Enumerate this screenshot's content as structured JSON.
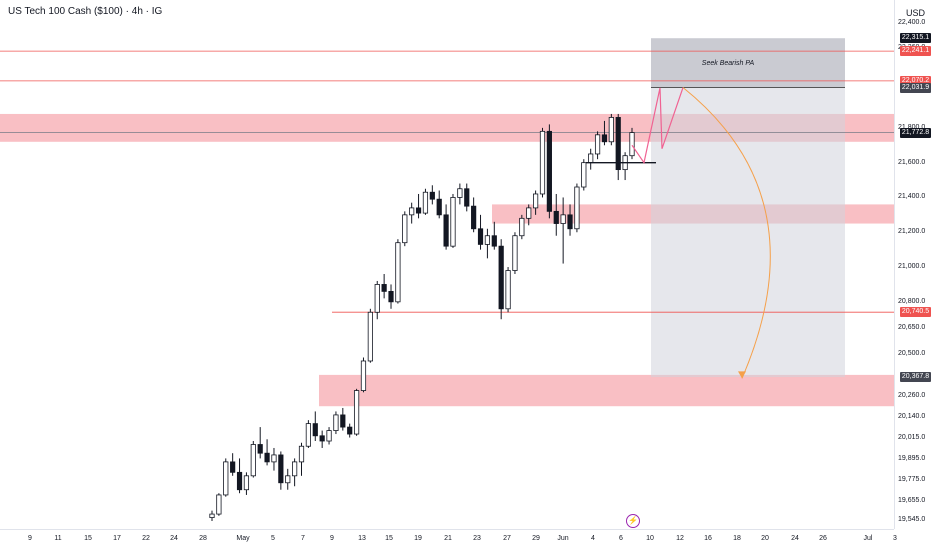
{
  "header": {
    "title": "US Tech 100 Cash ($100) · 4h · IG",
    "currency": "USD"
  },
  "annotations": {
    "seek_label": "Seek Bearish PA"
  },
  "price_axis": {
    "labels": [
      "22,400.0",
      "22,260.0",
      "21,800.0",
      "21,600.0",
      "21,400.0",
      "21,200.0",
      "21,000.0",
      "20,800.0",
      "20,650.0",
      "20,500.0",
      "20,260.0",
      "20,140.0",
      "20,015.0",
      "19,895.0",
      "19,775.0",
      "19,655.0",
      "19,545.0"
    ],
    "badges": [
      {
        "text": "22,315.1",
        "color": "#131722"
      },
      {
        "text": "22,241.1",
        "color": "#ef5350"
      },
      {
        "text": "22,070.2",
        "color": "#ef5350"
      },
      {
        "text": "22,031.9",
        "color": "#434651"
      },
      {
        "text": "21,772.8",
        "color": "#131722"
      },
      {
        "text": "20,740.5",
        "color": "#ef5350"
      },
      {
        "text": "20,367.8",
        "color": "#434651"
      }
    ]
  },
  "time_axis": {
    "labels": [
      "9",
      "11",
      "15",
      "17",
      "22",
      "24",
      "28",
      "May",
      "5",
      "7",
      "9",
      "13",
      "15",
      "19",
      "21",
      "23",
      "27",
      "29",
      "Jun",
      "4",
      "6",
      "10",
      "12",
      "16",
      "18",
      "20",
      "24",
      "26",
      "Jul",
      "3"
    ]
  },
  "chart_data": {
    "type": "candlestick",
    "series": [
      {
        "values": [
          {
            "o": 19560,
            "h": 19600,
            "l": 19540,
            "c": 19580
          },
          {
            "o": 19580,
            "h": 19700,
            "l": 19570,
            "c": 19690
          },
          {
            "o": 19690,
            "h": 19900,
            "l": 19680,
            "c": 19880
          },
          {
            "o": 19880,
            "h": 19930,
            "l": 19800,
            "c": 19820
          },
          {
            "o": 19820,
            "h": 19900,
            "l": 19700,
            "c": 19720
          },
          {
            "o": 19720,
            "h": 19820,
            "l": 19690,
            "c": 19800
          },
          {
            "o": 19800,
            "h": 20000,
            "l": 19790,
            "c": 19980
          },
          {
            "o": 19980,
            "h": 20080,
            "l": 19900,
            "c": 19930
          },
          {
            "o": 19930,
            "h": 20010,
            "l": 19860,
            "c": 19880
          },
          {
            "o": 19880,
            "h": 19960,
            "l": 19830,
            "c": 19920
          },
          {
            "o": 19920,
            "h": 19940,
            "l": 19720,
            "c": 19760
          },
          {
            "o": 19760,
            "h": 19840,
            "l": 19720,
            "c": 19800
          },
          {
            "o": 19800,
            "h": 19900,
            "l": 19740,
            "c": 19880
          },
          {
            "o": 19880,
            "h": 19990,
            "l": 19800,
            "c": 19970
          },
          {
            "o": 19970,
            "h": 20120,
            "l": 19960,
            "c": 20100
          },
          {
            "o": 20100,
            "h": 20170,
            "l": 20000,
            "c": 20030
          },
          {
            "o": 20030,
            "h": 20060,
            "l": 19960,
            "c": 20000
          },
          {
            "o": 20000,
            "h": 20080,
            "l": 19980,
            "c": 20060
          },
          {
            "o": 20060,
            "h": 20170,
            "l": 20040,
            "c": 20150
          },
          {
            "o": 20150,
            "h": 20190,
            "l": 20060,
            "c": 20080
          },
          {
            "o": 20080,
            "h": 20100,
            "l": 20020,
            "c": 20040
          },
          {
            "o": 20040,
            "h": 20300,
            "l": 20030,
            "c": 20290
          },
          {
            "o": 20290,
            "h": 20480,
            "l": 20280,
            "c": 20460
          },
          {
            "o": 20460,
            "h": 20760,
            "l": 20450,
            "c": 20740
          },
          {
            "o": 20740,
            "h": 20920,
            "l": 20700,
            "c": 20900
          },
          {
            "o": 20900,
            "h": 20960,
            "l": 20820,
            "c": 20860
          },
          {
            "o": 20860,
            "h": 20900,
            "l": 20760,
            "c": 20800
          },
          {
            "o": 20800,
            "h": 21160,
            "l": 20790,
            "c": 21140
          },
          {
            "o": 21140,
            "h": 21320,
            "l": 21120,
            "c": 21300
          },
          {
            "o": 21300,
            "h": 21370,
            "l": 21250,
            "c": 21340
          },
          {
            "o": 21340,
            "h": 21420,
            "l": 21280,
            "c": 21310
          },
          {
            "o": 21310,
            "h": 21450,
            "l": 21300,
            "c": 21430
          },
          {
            "o": 21430,
            "h": 21470,
            "l": 21360,
            "c": 21390
          },
          {
            "o": 21390,
            "h": 21440,
            "l": 21280,
            "c": 21300
          },
          {
            "o": 21300,
            "h": 21360,
            "l": 21100,
            "c": 21120
          },
          {
            "o": 21120,
            "h": 21420,
            "l": 21110,
            "c": 21400
          },
          {
            "o": 21400,
            "h": 21480,
            "l": 21360,
            "c": 21450
          },
          {
            "o": 21450,
            "h": 21480,
            "l": 21320,
            "c": 21350
          },
          {
            "o": 21350,
            "h": 21400,
            "l": 21200,
            "c": 21220
          },
          {
            "o": 21220,
            "h": 21300,
            "l": 21100,
            "c": 21130
          },
          {
            "o": 21130,
            "h": 21220,
            "l": 21050,
            "c": 21180
          },
          {
            "o": 21180,
            "h": 21260,
            "l": 21100,
            "c": 21120
          },
          {
            "o": 21120,
            "h": 21160,
            "l": 20700,
            "c": 20760
          },
          {
            "o": 20760,
            "h": 21000,
            "l": 20740,
            "c": 20980
          },
          {
            "o": 20980,
            "h": 21200,
            "l": 20960,
            "c": 21180
          },
          {
            "o": 21180,
            "h": 21300,
            "l": 21160,
            "c": 21280
          },
          {
            "o": 21280,
            "h": 21360,
            "l": 21240,
            "c": 21340
          },
          {
            "o": 21340,
            "h": 21440,
            "l": 21300,
            "c": 21420
          },
          {
            "o": 21420,
            "h": 21800,
            "l": 21400,
            "c": 21780
          },
          {
            "o": 21780,
            "h": 21820,
            "l": 21280,
            "c": 21320
          },
          {
            "o": 21320,
            "h": 21420,
            "l": 21180,
            "c": 21250
          },
          {
            "o": 21250,
            "h": 21400,
            "l": 21020,
            "c": 21300
          },
          {
            "o": 21300,
            "h": 21360,
            "l": 21180,
            "c": 21220
          },
          {
            "o": 21220,
            "h": 21480,
            "l": 21200,
            "c": 21460
          },
          {
            "o": 21460,
            "h": 21620,
            "l": 21440,
            "c": 21600
          },
          {
            "o": 21600,
            "h": 21680,
            "l": 21560,
            "c": 21650
          },
          {
            "o": 21650,
            "h": 21780,
            "l": 21620,
            "c": 21760
          },
          {
            "o": 21760,
            "h": 21840,
            "l": 21700,
            "c": 21720
          },
          {
            "o": 21720,
            "h": 21880,
            "l": 21700,
            "c": 21860
          },
          {
            "o": 21860,
            "h": 21880,
            "l": 21500,
            "c": 21560
          },
          {
            "o": 21560,
            "h": 21660,
            "l": 21500,
            "c": 21640
          },
          {
            "o": 21640,
            "h": 21800,
            "l": 21620,
            "c": 21772.8
          }
        ]
      }
    ],
    "zones": [
      {
        "from": 21720,
        "to": 21880,
        "color": "#f7a9b0"
      },
      {
        "from": 21250,
        "to": 21360,
        "color": "#f7a9b0"
      },
      {
        "from": 20200,
        "to": 20380,
        "color": "#f7a9b0"
      }
    ],
    "levels": [
      {
        "price": 22241.1,
        "color": "#ef5350"
      },
      {
        "price": 22070.2,
        "color": "#ef5350"
      },
      {
        "price": 21772.8,
        "color": "#787b86"
      },
      {
        "price": 20740.5,
        "color": "#ef5350"
      }
    ],
    "projection_box": {
      "top": 22315.1,
      "bottom": 20367.8,
      "mid": 22031.9
    },
    "ylim": [
      19500,
      22420
    ]
  }
}
